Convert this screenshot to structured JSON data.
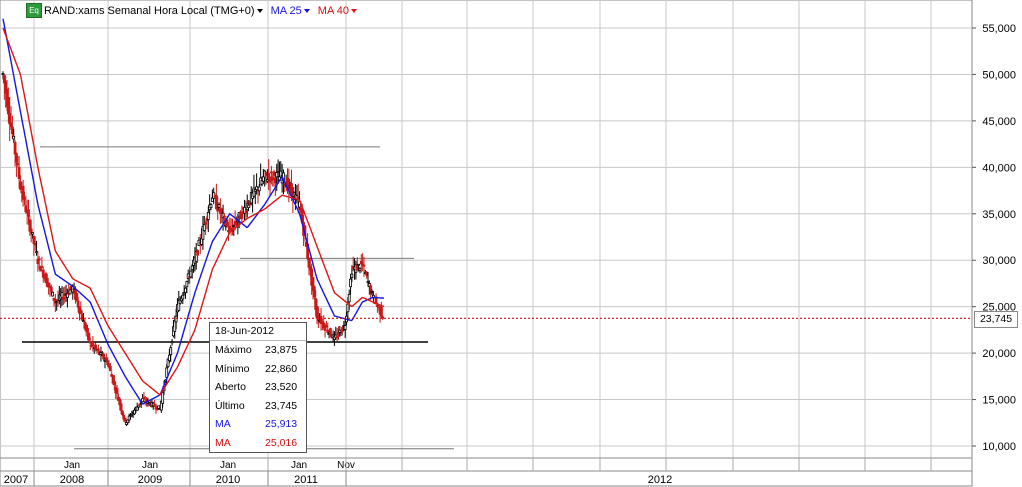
{
  "header": {
    "badge": "Eq",
    "title": "RAND:xams Semanal Hora Local (TMG+0)",
    "ma25_label": "MA 25",
    "ma40_label": "MA 40"
  },
  "tooltip": {
    "date": "18-Jun-2012",
    "rows": [
      {
        "label": "Máximo",
        "value": "23,875"
      },
      {
        "label": "Mínimo",
        "value": "22,860"
      },
      {
        "label": "Aberto",
        "value": "23,520"
      },
      {
        "label": "Último",
        "value": "23,745"
      },
      {
        "label": "MA",
        "value": "25,913"
      },
      {
        "label": "MA",
        "value": "25,016"
      }
    ]
  },
  "last_price_label": "23,745",
  "colors": {
    "ma25": "#1515e0",
    "ma40": "#e01515",
    "last_price_line": "#d01010",
    "up_candle": "#000000",
    "down_candle": "#c81818"
  },
  "chart_data": {
    "type": "line",
    "title": "RAND:xams Semanal Hora Local (TMG+0)",
    "ylim": [
      10000,
      58000
    ],
    "y_ticks": [
      "10,000",
      "15,000",
      "20,000",
      "25,000",
      "30,000",
      "35,000",
      "40,000",
      "45,000",
      "50,000",
      "55,000"
    ],
    "x_tick_labels_upper": [
      "Jan",
      "Jan",
      "Jan",
      "Jan",
      "Nov"
    ],
    "x_tick_labels_lower": [
      "2007",
      "2008",
      "2009",
      "2010",
      "2011",
      "2012"
    ],
    "grid": true,
    "last_price": 23745,
    "series": [
      {
        "name": "RAND:xams",
        "x": [
          2007.0,
          2007.25,
          2007.5,
          2007.75,
          2008.0,
          2008.25,
          2008.5,
          2008.75,
          2009.0,
          2009.25,
          2009.5,
          2009.75,
          2010.0,
          2010.25,
          2010.5,
          2010.75,
          2011.0,
          2011.25,
          2011.5,
          2011.75,
          2011.9,
          2012.0,
          2012.15,
          2012.3,
          2012.46
        ],
        "values": [
          50000,
          38000,
          30000,
          25500,
          27000,
          21000,
          19000,
          12500,
          15000,
          14000,
          25000,
          30000,
          37000,
          33000,
          36000,
          39000,
          39000,
          36000,
          24000,
          21500,
          23000,
          29000,
          29500,
          26000,
          23745
        ]
      },
      {
        "name": "MA 25",
        "x": [
          2007.0,
          2007.25,
          2007.5,
          2007.75,
          2008.0,
          2008.25,
          2008.5,
          2008.75,
          2009.0,
          2009.25,
          2009.5,
          2009.75,
          2010.0,
          2010.25,
          2010.5,
          2010.75,
          2011.0,
          2011.25,
          2011.5,
          2011.75,
          2012.0,
          2012.15,
          2012.3,
          2012.46
        ],
        "values": [
          56000,
          46000,
          36000,
          28500,
          27200,
          25500,
          21000,
          17500,
          14500,
          15500,
          20000,
          26500,
          32000,
          35000,
          33500,
          36000,
          39000,
          35000,
          28000,
          24000,
          23500,
          25500,
          26000,
          25913
        ]
      },
      {
        "name": "MA 40",
        "x": [
          2007.0,
          2007.25,
          2007.5,
          2007.75,
          2008.0,
          2008.25,
          2008.5,
          2008.75,
          2009.0,
          2009.25,
          2009.5,
          2009.75,
          2010.0,
          2010.25,
          2010.5,
          2010.75,
          2011.0,
          2011.25,
          2011.5,
          2011.75,
          2012.0,
          2012.15,
          2012.3,
          2012.46
        ],
        "values": [
          55000,
          50000,
          40000,
          31000,
          28000,
          27000,
          23000,
          20000,
          17000,
          15500,
          18500,
          22500,
          29000,
          33000,
          34500,
          35500,
          37000,
          36500,
          31500,
          26500,
          25000,
          26000,
          25500,
          25016
        ]
      }
    ],
    "horizontal_lines": [
      42200,
      30200,
      21200,
      9700
    ]
  }
}
